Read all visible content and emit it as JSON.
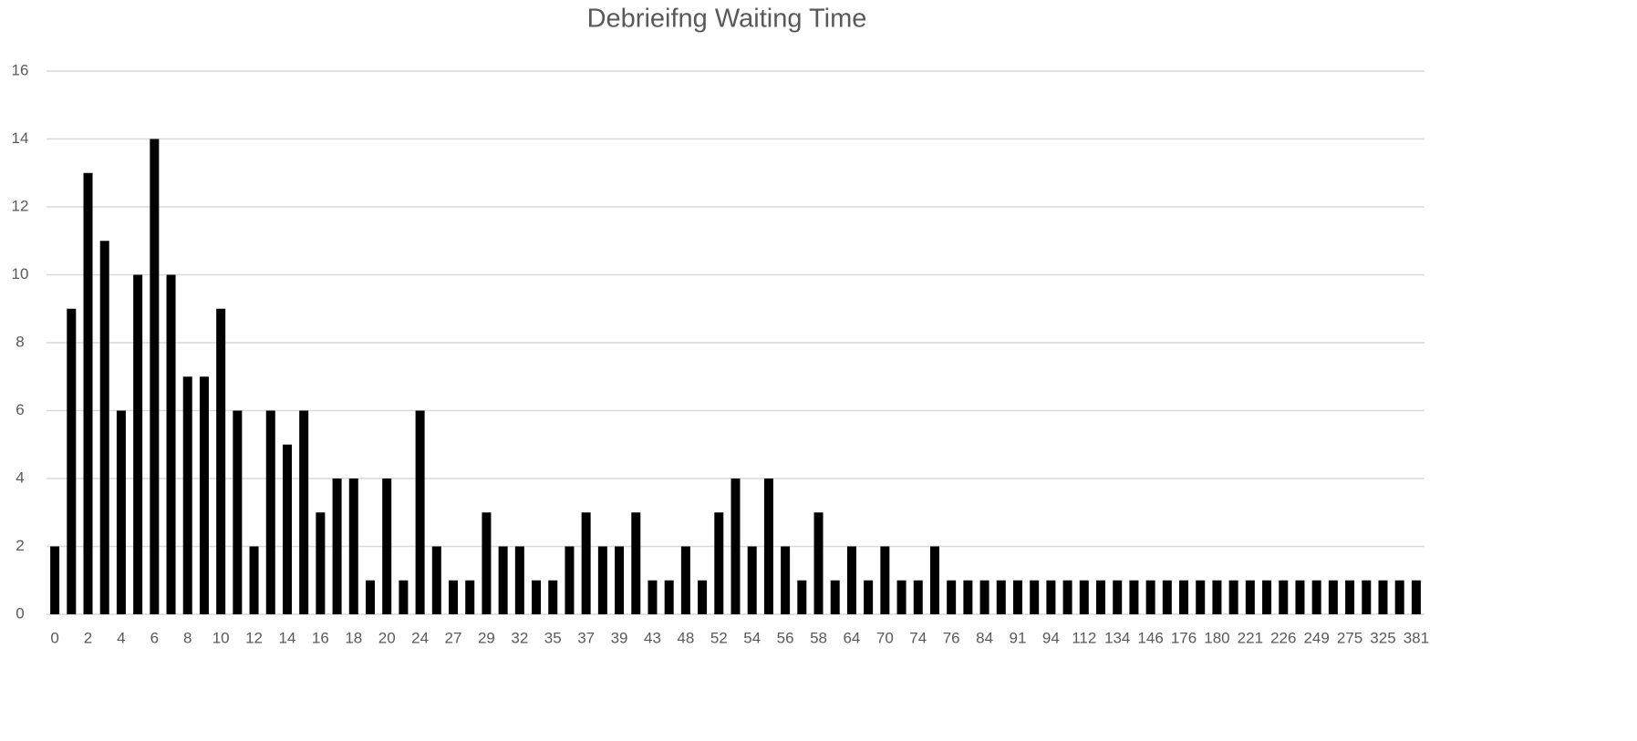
{
  "chart_data": {
    "type": "bar",
    "title": "Debrieifng Waiting Time",
    "categories": [
      0,
      null,
      2,
      null,
      4,
      null,
      6,
      null,
      8,
      null,
      10,
      null,
      12,
      null,
      14,
      null,
      16,
      null,
      18,
      null,
      20,
      null,
      24,
      null,
      27,
      null,
      29,
      null,
      32,
      null,
      35,
      null,
      37,
      null,
      39,
      null,
      43,
      null,
      48,
      null,
      52,
      null,
      54,
      null,
      56,
      null,
      58,
      null,
      64,
      null,
      70,
      null,
      74,
      null,
      76,
      null,
      84,
      null,
      91,
      null,
      94,
      null,
      112,
      null,
      134,
      null,
      146,
      null,
      176,
      null,
      180,
      null,
      221,
      null,
      226,
      null,
      249,
      null,
      275,
      null,
      325,
      null,
      381
    ],
    "values": [
      2,
      9,
      13,
      11,
      6,
      10,
      14,
      10,
      7,
      7,
      9,
      6,
      2,
      6,
      5,
      6,
      3,
      4,
      4,
      1,
      4,
      1,
      6,
      2,
      1,
      1,
      3,
      2,
      2,
      1,
      1,
      2,
      3,
      2,
      2,
      3,
      1,
      1,
      2,
      1,
      3,
      4,
      2,
      4,
      2,
      1,
      3,
      1,
      2,
      1,
      2,
      1,
      1,
      2,
      1,
      1,
      1,
      1,
      1,
      1,
      1,
      1,
      1,
      1,
      1,
      1,
      1,
      1,
      1,
      1,
      1,
      1,
      1,
      1,
      1,
      1,
      1,
      1,
      1,
      1,
      1,
      1,
      1
    ],
    "color": "#000000",
    "ylim": [
      0,
      16
    ],
    "yticks": [
      0,
      2,
      4,
      6,
      8,
      10,
      12,
      14,
      16
    ],
    "grid": true
  }
}
